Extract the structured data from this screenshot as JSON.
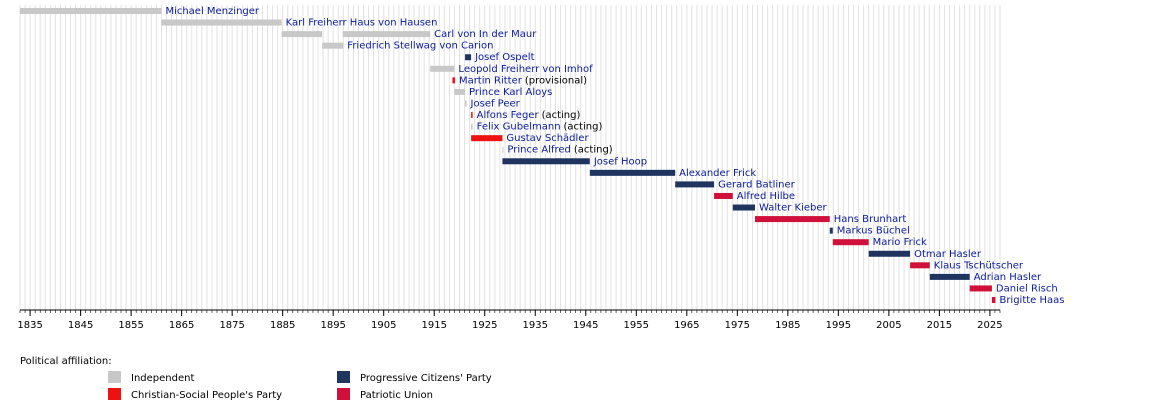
{
  "chart_data": {
    "type": "timeline",
    "xlim": [
      1833,
      2027
    ],
    "xticks": [
      1835,
      1845,
      1855,
      1865,
      1875,
      1885,
      1895,
      1905,
      1915,
      1925,
      1935,
      1945,
      1955,
      1965,
      1975,
      1985,
      1995,
      2005,
      2015,
      2025
    ],
    "minor_tick_step": 1,
    "grid": true,
    "legend_title": "Political affiliation:",
    "series": [
      {
        "name": "Independent",
        "color": "#c8c8c8"
      },
      {
        "name": "Christian-Social People's Party",
        "color": "#ee1111"
      },
      {
        "name": "Progressive Citizens' Party",
        "color": "#1f3560"
      },
      {
        "name": "Patriotic Union",
        "color": "#d0103a"
      }
    ],
    "rows": [
      {
        "label": "Michael Menzinger",
        "party": "Independent",
        "spans": [
          [
            1833,
            1861
          ]
        ]
      },
      {
        "label": "Karl Freiherr Haus von Hausen",
        "party": "Independent",
        "spans": [
          [
            1861,
            1884.8
          ]
        ]
      },
      {
        "label": "Carl von In der Maur",
        "party": "Independent",
        "spans": [
          [
            1884.8,
            1892.8
          ],
          [
            1896.9,
            1914.2
          ]
        ]
      },
      {
        "label": "Friedrich Stellwag von Carion",
        "party": "Independent",
        "spans": [
          [
            1892.8,
            1897
          ]
        ]
      },
      {
        "label": "Josef Ospelt",
        "party": "Progressive Citizens' Party",
        "spans": [
          [
            1921.1,
            1922.3
          ]
        ]
      },
      {
        "label": "Leopold Freiherr von Imhof",
        "party": "Independent",
        "spans": [
          [
            1914.2,
            1919
          ]
        ]
      },
      {
        "label": "Martin Ritter",
        "note": "(provisional)",
        "party": "Christian-Social People's Party",
        "spans": [
          [
            1918.6,
            1919.1
          ]
        ]
      },
      {
        "label": "Prince Karl Aloys",
        "party": "Independent",
        "spans": [
          [
            1919,
            1921.1
          ]
        ]
      },
      {
        "label": "Josef Peer",
        "party": "Independent",
        "spans": [
          [
            1921.1,
            1921.4
          ]
        ]
      },
      {
        "label": "Alfons Feger",
        "note": "(acting)",
        "party": "Christian-Social People's Party",
        "spans": [
          [
            1922.3,
            1922.6
          ]
        ]
      },
      {
        "label": "Felix Gubelmann",
        "note": "(acting)",
        "party": "Independent",
        "spans": [
          [
            1922.3,
            1922.6
          ]
        ]
      },
      {
        "label": "Gustav Schädler",
        "party": "Christian-Social People's Party",
        "spans": [
          [
            1922.3,
            1928.5
          ]
        ]
      },
      {
        "label": "Prince Alfred",
        "note": "(acting)",
        "party": "Independent",
        "spans": [
          [
            1928.5,
            1928.7
          ]
        ]
      },
      {
        "label": "Josef Hoop",
        "party": "Progressive Citizens' Party",
        "spans": [
          [
            1928.5,
            1945.8
          ]
        ]
      },
      {
        "label": "Alexander Frick",
        "party": "Progressive Citizens' Party",
        "spans": [
          [
            1945.8,
            1962.7
          ]
        ]
      },
      {
        "label": "Gerard Batliner",
        "party": "Progressive Citizens' Party",
        "spans": [
          [
            1962.7,
            1970.4
          ]
        ]
      },
      {
        "label": "Alfred Hilbe",
        "party": "Patriotic Union",
        "spans": [
          [
            1970.4,
            1974.1
          ]
        ]
      },
      {
        "label": "Walter Kieber",
        "party": "Progressive Citizens' Party",
        "spans": [
          [
            1974.1,
            1978.5
          ]
        ]
      },
      {
        "label": "Hans Brunhart",
        "party": "Patriotic Union",
        "spans": [
          [
            1978.5,
            1993.3
          ]
        ]
      },
      {
        "label": "Markus Büchel",
        "party": "Progressive Citizens' Party",
        "spans": [
          [
            1993.3,
            1993.9
          ]
        ]
      },
      {
        "label": "Mario Frick",
        "party": "Patriotic Union",
        "spans": [
          [
            1993.9,
            2001
          ]
        ]
      },
      {
        "label": "Otmar Hasler",
        "party": "Progressive Citizens' Party",
        "spans": [
          [
            2001,
            2009.2
          ]
        ]
      },
      {
        "label": "Klaus Tschütscher",
        "party": "Patriotic Union",
        "spans": [
          [
            2009.2,
            2013.1
          ]
        ]
      },
      {
        "label": "Adrian Hasler",
        "party": "Progressive Citizens' Party",
        "spans": [
          [
            2013.1,
            2021
          ]
        ]
      },
      {
        "label": "Daniel Risch",
        "party": "Patriotic Union",
        "spans": [
          [
            2021,
            2025.4
          ]
        ]
      },
      {
        "label": "Brigitte Haas",
        "party": "Patriotic Union",
        "spans": [
          [
            2025.4,
            2026.1
          ]
        ]
      }
    ]
  }
}
